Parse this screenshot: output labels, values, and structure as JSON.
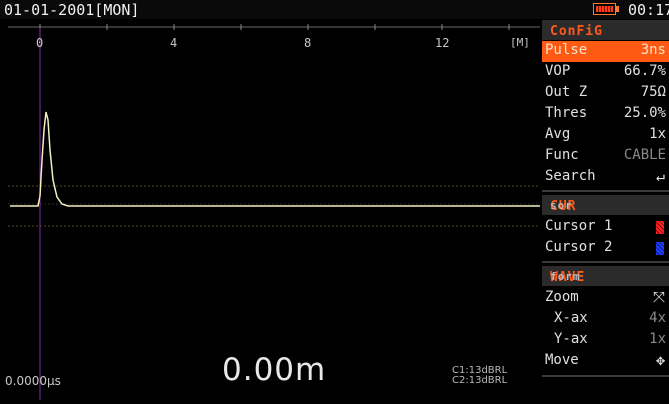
{
  "header": {
    "date": "01-01-2001[MON]",
    "clock": "00:17",
    "battery_level": 1.0
  },
  "trace": {
    "x_ticks": [
      "0",
      "4",
      "8",
      "12"
    ],
    "unit": "[M]",
    "time_readout": "0.0000µs",
    "distance_readout": "0.00m",
    "c1": "C1:13dBRL",
    "c2": "C2:13dBRL",
    "colors": {
      "trace": "#f2f0c0",
      "cursor": "#8a2aa8",
      "threshold": "#4a4a1a"
    }
  },
  "config": {
    "title_hl": "ConFiG",
    "items": [
      {
        "label": "Pulse",
        "value": "3ns",
        "selected": true
      },
      {
        "label": "VOP",
        "value": "66.7%"
      },
      {
        "label": "Out Z",
        "value": "75Ω"
      },
      {
        "label": "Thres",
        "value": "25.0%"
      },
      {
        "label": "Avg",
        "value": "1x"
      },
      {
        "label": "Func",
        "value": "CABLE"
      },
      {
        "label": "Search",
        "icon": "enter-icon",
        "glyph": "↵"
      }
    ]
  },
  "cursor": {
    "title_hl": "CUR",
    "title_rest": "sor",
    "items": [
      {
        "label": "Cursor 1",
        "color": "#ff2020"
      },
      {
        "label": "Cursor 2",
        "color": "#2040ff"
      }
    ]
  },
  "waveform": {
    "title_hl": "WAVE",
    "title_rest": "form",
    "items": [
      {
        "label": "Zoom",
        "icon": "zoom-expand-icon",
        "glyph": "⤧"
      },
      {
        "label": "X-ax",
        "value": "4x"
      },
      {
        "label": "Y-ax",
        "value": "1x"
      },
      {
        "label": "Move",
        "icon": "move-icon",
        "glyph": "✥"
      }
    ]
  }
}
